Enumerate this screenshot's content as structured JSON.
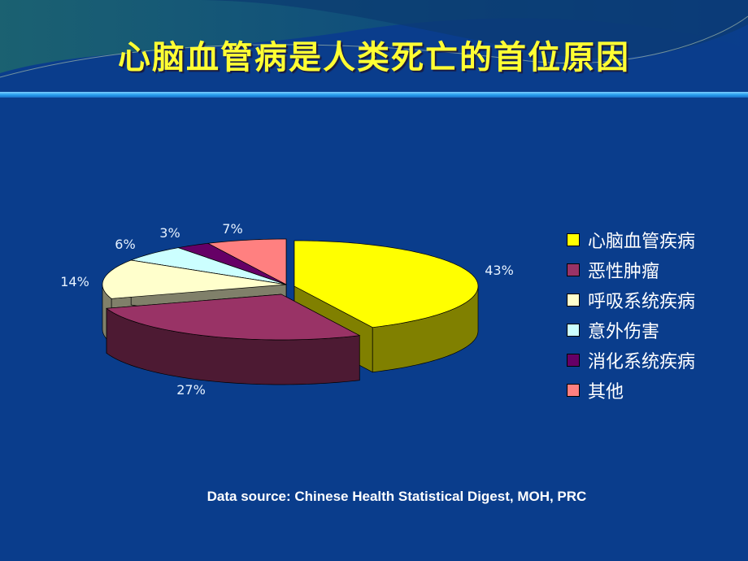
{
  "title": "心脑血管病是人类死亡的首位原因",
  "source": "Data source: Chinese Health Statistical Digest, MOH, PRC",
  "chart_data": {
    "type": "pie",
    "style": "3d-exploded",
    "categories": [
      "心脑血管疾病",
      "恶性肿瘤",
      "呼吸系统疾病",
      "意外伤害",
      "消化系统疾病",
      "其他"
    ],
    "values": [
      43,
      27,
      14,
      6,
      3,
      7
    ],
    "labels": [
      "43%",
      "27%",
      "14%",
      "6%",
      "3%",
      "7%"
    ],
    "colors": [
      "#FFFF00",
      "#993366",
      "#FFFFCC",
      "#CCFFFF",
      "#660066",
      "#FF8080"
    ],
    "side_colors": [
      "#808000",
      "#4d1a33",
      "#80806a",
      "#6a8080",
      "#330033",
      "#804040"
    ],
    "legend_position": "right"
  }
}
